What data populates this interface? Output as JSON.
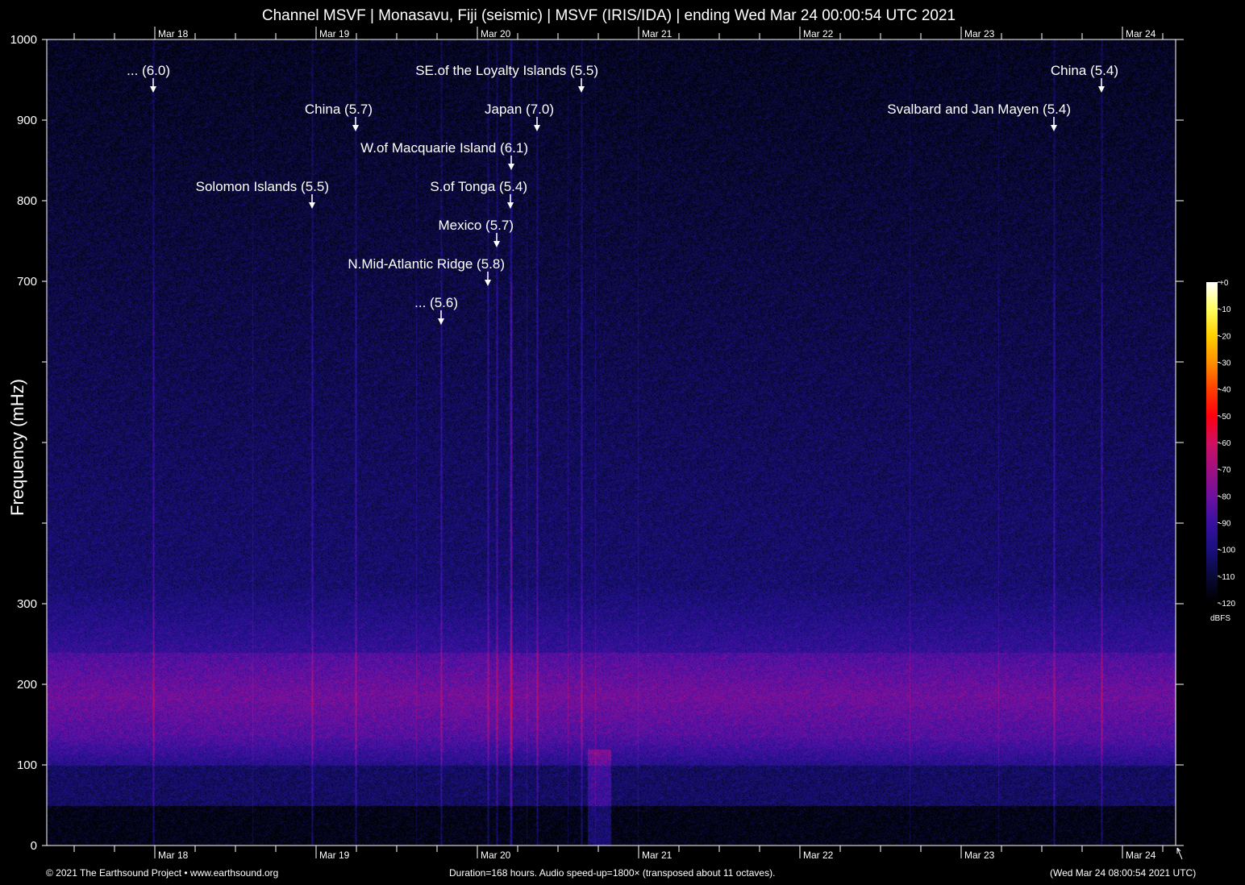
{
  "chart_data": {
    "type": "heatmap",
    "subtype": "spectrogram",
    "title": "Channel MSVF | Monasavu, Fiji (seismic) | MSVF (IRIS/IDA) | ending Wed Mar 24 00:00:54 UTC 2021",
    "ylabel": "Frequency (mHz)",
    "ylim": [
      0,
      1000
    ],
    "y_tick_labels": [
      "0",
      "100",
      "200",
      "300",
      "700",
      "800",
      "900",
      "1000"
    ],
    "x_tick_labels": [
      "Mar 18",
      "Mar 19",
      "Mar 20",
      "Mar 21",
      "Mar 22",
      "Mar 23",
      "Mar 24"
    ],
    "x_range_hours": 168,
    "colorbar": {
      "unit": "dBFS",
      "range": [
        -120,
        0
      ],
      "tick_labels": [
        "+0",
        "-10",
        "-20",
        "-30",
        "-40",
        "-50",
        "-60",
        "-70",
        "-80",
        "-90",
        "-100",
        "-110",
        "-120"
      ],
      "colormap": [
        "#000000",
        "#0a0a3a",
        "#1a1080",
        "#3a10a0",
        "#7010a0",
        "#a01080",
        "#d01060",
        "#ff0010",
        "#ff4000",
        "#ff9000",
        "#ffd000",
        "#ffff60",
        "#ffffff"
      ]
    },
    "annotations": [
      {
        "label": "... (6.0)",
        "time": "Mar 17 23:46"
      },
      {
        "label": "SE.of the Loyalty Islands (5.5)",
        "time": "Mar 20 15:29"
      },
      {
        "label": "China (5.4)",
        "time": "Mar 23 20:53"
      },
      {
        "label": "China (5.7)",
        "time": "Mar 19 05:53"
      },
      {
        "label": "Japan (7.0)",
        "time": "Mar 20 08:53"
      },
      {
        "label": "Svalbard and Jan Mayen (5.4)",
        "time": "Mar 23 13:48"
      },
      {
        "label": "W.of Macquarie Island (6.1)",
        "time": "Mar 20 05:02"
      },
      {
        "label": "Solomon Islands (5.5)",
        "time": "Mar 18 23:24"
      },
      {
        "label": "S.of Tonga (5.4)",
        "time": "Mar 20 04:55"
      },
      {
        "label": "Mexico (5.7)",
        "time": "Mar 20 02:53"
      },
      {
        "label": "N.Mid-Atlantic Ridge (5.8)",
        "time": "Mar 20 01:34"
      },
      {
        "label": "... (5.6)",
        "time": "Mar 19 18:36"
      }
    ]
  },
  "footer": {
    "copyright": "© 2021 The Earthsound Project • www.earthsound.org",
    "info": "Duration=168 hours. Audio speed-up=1800× (transposed about 11 octaves).",
    "generated": "(Wed Mar 24 08:00:54 2021 UTC)"
  }
}
